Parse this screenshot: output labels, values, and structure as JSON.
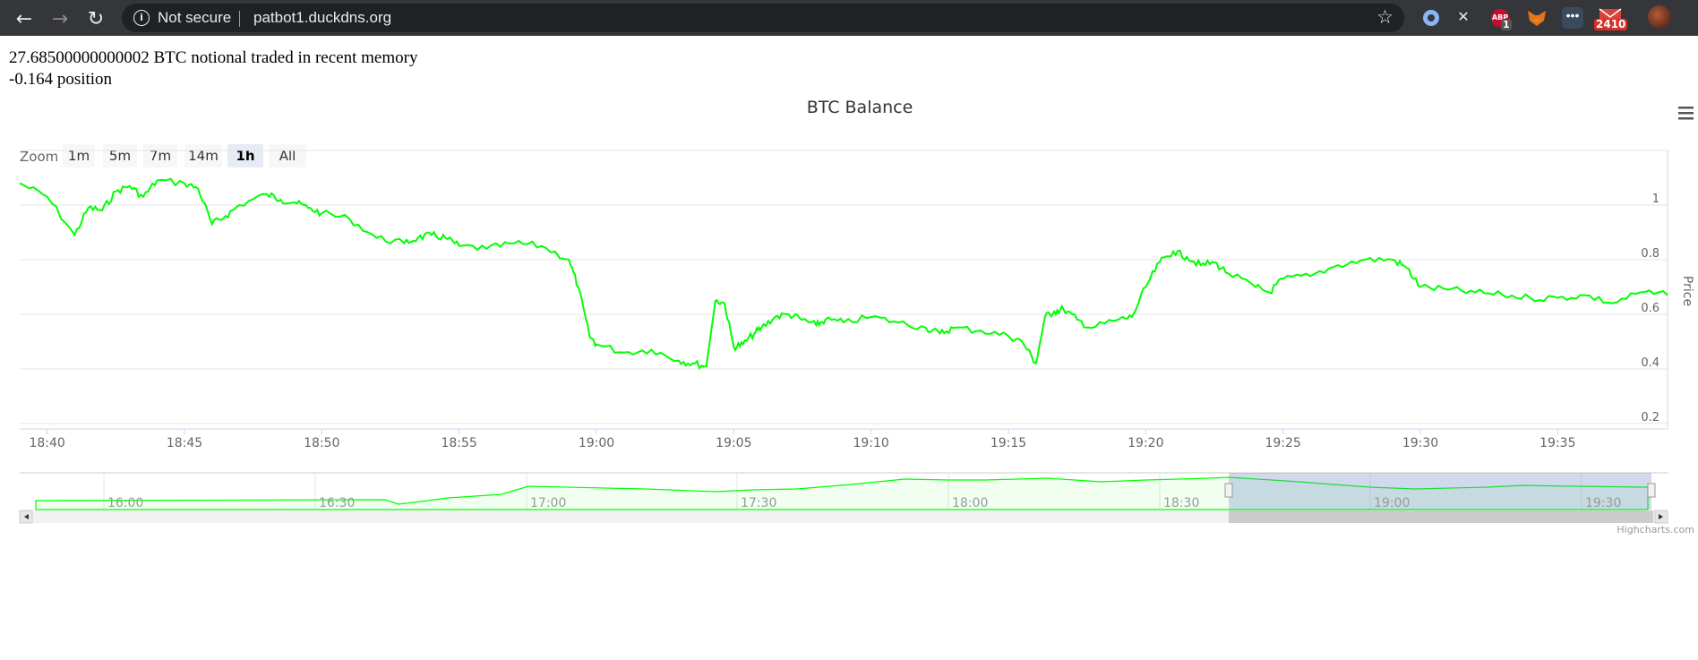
{
  "browser": {
    "security_label": "Not secure",
    "url": "patbot1.duckdns.org",
    "extension_badges": {
      "abp_label": "ABP",
      "abp_count": "1",
      "mail_count": "2410"
    }
  },
  "page": {
    "notional_line": "27.68500000000002 BTC notional traded in recent memory",
    "position_line": "-0.164 position"
  },
  "chart_data": {
    "type": "line",
    "title": "BTC Balance",
    "ylabel": "Price",
    "ylim": [
      0.18,
      1.2
    ],
    "yticks": [
      0.2,
      0.4,
      0.6,
      0.8,
      1
    ],
    "ytick_labels": [
      "0.2",
      "0.4",
      "0.6",
      "0.8",
      "1"
    ],
    "xlim": [
      "18:39",
      "19:39"
    ],
    "xtick_labels": [
      "18:40",
      "18:45",
      "18:50",
      "18:55",
      "19:00",
      "19:05",
      "19:10",
      "19:15",
      "19:20",
      "19:25",
      "19:30",
      "19:35"
    ],
    "grid": true,
    "series_color": "#00ff00",
    "series": [
      {
        "x": [
          "18:39",
          "18:40",
          "18:41",
          "18:41:30",
          "18:42",
          "18:42:30",
          "18:43",
          "18:43:30",
          "18:44",
          "18:45",
          "18:45:30",
          "18:46",
          "18:46:30",
          "18:47",
          "18:48",
          "18:48:30",
          "18:49",
          "18:49:30",
          "18:50",
          "18:51",
          "18:52",
          "18:53",
          "18:53:30",
          "18:54",
          "18:54:30",
          "18:55",
          "18:56",
          "18:57",
          "18:58",
          "18:59",
          "18:59:20",
          "18:59:45",
          "19:00",
          "19:01",
          "19:02",
          "19:03",
          "19:03:30",
          "19:04",
          "19:04:20",
          "19:04:40",
          "19:05",
          "19:05:20",
          "19:05:45",
          "19:06",
          "19:06:30",
          "19:07",
          "19:07:30",
          "19:08",
          "19:08:20",
          "19:09",
          "19:10",
          "19:11",
          "19:12",
          "19:12:30",
          "19:13",
          "19:14",
          "19:15",
          "19:15:30",
          "19:16",
          "19:16:20",
          "19:16:40",
          "19:17",
          "19:17:30",
          "19:18",
          "19:19",
          "19:19:30",
          "19:20",
          "19:20:30",
          "19:21",
          "19:21:30",
          "19:22",
          "19:22:30",
          "19:23",
          "19:24",
          "19:24:30",
          "19:25",
          "19:26",
          "19:27",
          "19:28",
          "19:29",
          "19:29:30",
          "19:30",
          "19:31",
          "19:32",
          "19:33",
          "19:34",
          "19:35",
          "19:36",
          "19:37",
          "19:38",
          "19:39"
        ],
        "values": [
          1.08,
          1.03,
          0.89,
          0.99,
          0.98,
          1.05,
          1.07,
          1.03,
          1.09,
          1.08,
          1.06,
          0.93,
          0.96,
          1.0,
          1.04,
          1.02,
          1.01,
          0.99,
          0.97,
          0.95,
          0.88,
          0.86,
          0.88,
          0.89,
          0.88,
          0.85,
          0.84,
          0.86,
          0.85,
          0.8,
          0.7,
          0.52,
          0.49,
          0.46,
          0.47,
          0.43,
          0.42,
          0.41,
          0.65,
          0.64,
          0.48,
          0.49,
          0.53,
          0.55,
          0.59,
          0.6,
          0.58,
          0.56,
          0.58,
          0.57,
          0.59,
          0.57,
          0.55,
          0.53,
          0.55,
          0.54,
          0.52,
          0.5,
          0.42,
          0.59,
          0.61,
          0.62,
          0.58,
          0.55,
          0.58,
          0.59,
          0.7,
          0.79,
          0.83,
          0.81,
          0.78,
          0.79,
          0.75,
          0.7,
          0.68,
          0.73,
          0.74,
          0.78,
          0.8,
          0.8,
          0.77,
          0.7,
          0.69,
          0.68,
          0.67,
          0.66,
          0.66,
          0.67,
          0.64,
          0.68,
          0.67
        ]
      }
    ],
    "range_selector": {
      "label": "Zoom",
      "buttons": [
        "1m",
        "5m",
        "7m",
        "14m",
        "1h",
        "All"
      ],
      "selected": "1h"
    },
    "navigator": {
      "xtick_labels": [
        "16:00",
        "16:30",
        "17:00",
        "17:30",
        "18:00",
        "18:30",
        "19:00",
        "19:30"
      ],
      "selected_range": [
        "18:39",
        "19:39"
      ]
    },
    "credits": "Highcharts.com"
  }
}
